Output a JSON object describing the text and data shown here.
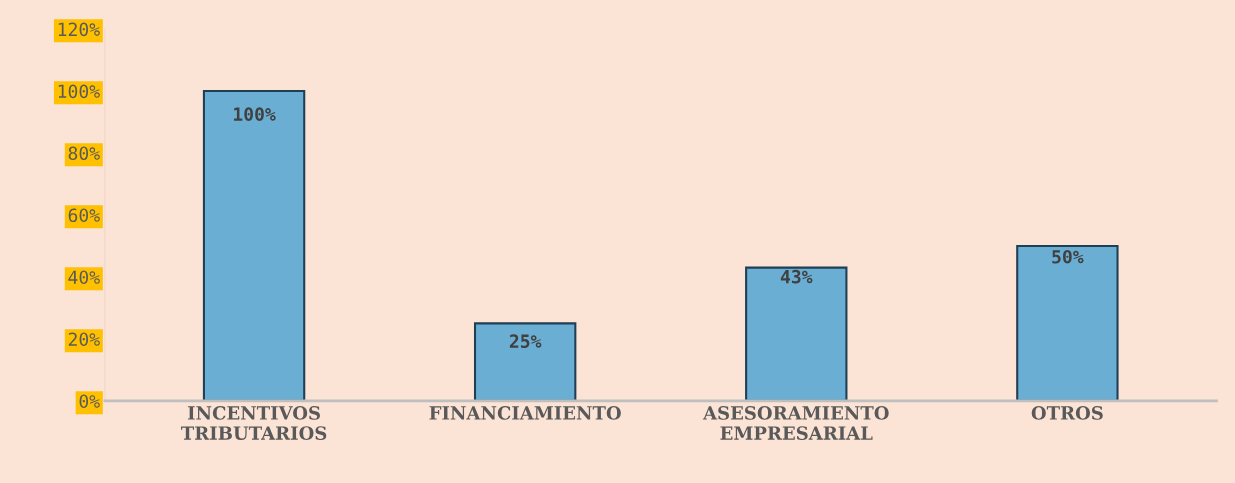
{
  "chart_data": {
    "type": "bar",
    "categories": [
      "INCENTIVOS\nTRIBUTARIOS",
      "FINANCIAMIENTO",
      "ASESORAMIENTO\nEMPRESARIAL",
      "OTROS"
    ],
    "values": [
      100,
      25,
      43,
      50
    ],
    "value_labels": [
      "100%",
      "25%",
      "43%",
      "50%"
    ],
    "color": "#6aaed4",
    "ylim": [
      0,
      120
    ],
    "yticks": [
      {
        "value": 0,
        "label": "0%"
      },
      {
        "value": 20,
        "label": "20%"
      },
      {
        "value": 40,
        "label": "40%"
      },
      {
        "value": 60,
        "label": "60%"
      },
      {
        "value": 80,
        "label": "80%"
      },
      {
        "value": 100,
        "label": "100%"
      },
      {
        "value": 120,
        "label": "120%"
      }
    ],
    "grid": false
  }
}
